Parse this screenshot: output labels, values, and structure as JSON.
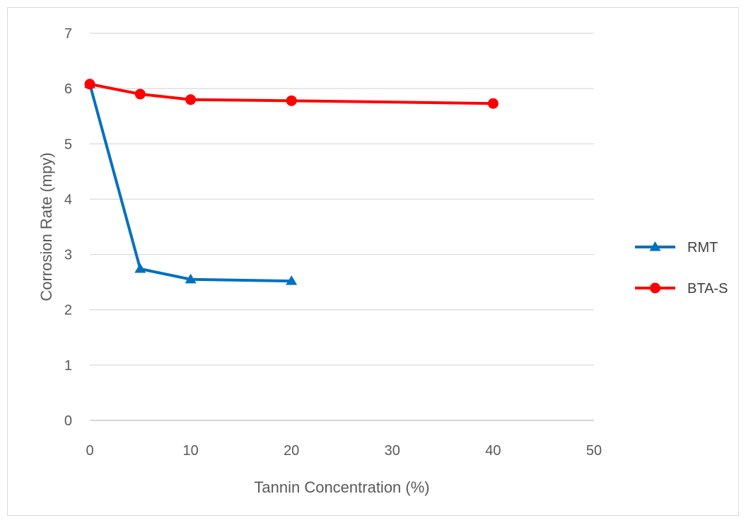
{
  "chart_data": {
    "type": "line",
    "title": "",
    "xlabel": "Tannin Concentration (%)",
    "ylabel": "Corrosion Rate (mpy)",
    "xlim": [
      0,
      50
    ],
    "ylim": [
      0,
      7
    ],
    "xticks": [
      0,
      10,
      20,
      30,
      40,
      50
    ],
    "yticks": [
      0,
      1,
      2,
      3,
      4,
      5,
      6,
      7
    ],
    "grid": "horizontal",
    "legend_position": "right",
    "series": [
      {
        "name": "RMT",
        "color": "#0070c0",
        "marker": "triangle",
        "x": [
          0,
          5,
          10,
          20
        ],
        "y": [
          6.08,
          2.74,
          2.55,
          2.52
        ]
      },
      {
        "name": "BTA-S",
        "color": "#ff0000",
        "marker": "circle",
        "x": [
          0,
          5,
          10,
          20,
          40
        ],
        "y": [
          6.08,
          5.9,
          5.8,
          5.78,
          5.73
        ]
      }
    ]
  }
}
